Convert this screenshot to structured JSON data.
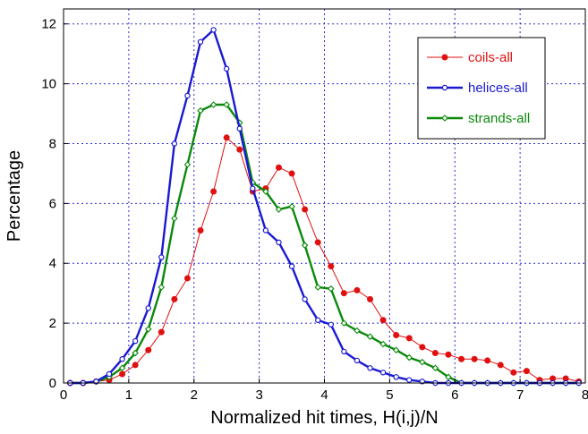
{
  "chart_data": {
    "type": "line",
    "title": "",
    "xlabel": "Normalized hit times, H(i,j)/N",
    "ylabel": "Percentage",
    "xlim": [
      0,
      8
    ],
    "ylim": [
      0,
      12.5
    ],
    "xticks": [
      "0",
      "1",
      "2",
      "3",
      "4",
      "5",
      "6",
      "7",
      "8"
    ],
    "yticks": [
      "0",
      "2",
      "4",
      "6",
      "8",
      "10",
      "12"
    ],
    "grid": true,
    "legend_position": "top-right",
    "series": [
      {
        "name": "coils-all",
        "color": "#e01010",
        "marker": "filled-circle",
        "x": [
          0.1,
          0.3,
          0.5,
          0.7,
          0.9,
          1.1,
          1.3,
          1.5,
          1.7,
          1.9,
          2.1,
          2.3,
          2.5,
          2.7,
          2.9,
          3.1,
          3.3,
          3.5,
          3.7,
          3.9,
          4.1,
          4.3,
          4.5,
          4.7,
          4.9,
          5.1,
          5.3,
          5.5,
          5.7,
          5.9,
          6.1,
          6.3,
          6.5,
          6.7,
          6.9,
          7.1,
          7.3,
          7.5,
          7.7,
          7.9
        ],
        "y": [
          0,
          0,
          0.05,
          0.1,
          0.3,
          0.6,
          1.1,
          1.7,
          2.8,
          3.5,
          5.1,
          6.4,
          8.2,
          7.8,
          6.4,
          6.5,
          7.2,
          7.0,
          5.8,
          4.7,
          3.9,
          3.0,
          3.1,
          2.8,
          2.1,
          1.6,
          1.5,
          1.2,
          1.0,
          0.95,
          0.8,
          0.8,
          0.75,
          0.6,
          0.35,
          0.4,
          0.1,
          0.15,
          0.15,
          0.05
        ]
      },
      {
        "name": "helices-all",
        "color": "#1a1ad0",
        "marker": "open-circle",
        "x": [
          0.1,
          0.3,
          0.5,
          0.7,
          0.9,
          1.1,
          1.3,
          1.5,
          1.7,
          1.9,
          2.1,
          2.3,
          2.5,
          2.7,
          2.9,
          3.1,
          3.3,
          3.5,
          3.7,
          3.9,
          4.1,
          4.3,
          4.5,
          4.7,
          4.9,
          5.1,
          5.3,
          5.5,
          5.7,
          5.9,
          6.1,
          6.3,
          6.5,
          6.7,
          6.9,
          7.1,
          7.3,
          7.5,
          7.7,
          7.9
        ],
        "y": [
          0,
          0,
          0.05,
          0.3,
          0.8,
          1.4,
          2.5,
          4.2,
          8.0,
          9.6,
          11.4,
          11.8,
          10.5,
          8.5,
          6.5,
          5.1,
          4.7,
          3.9,
          2.8,
          2.1,
          1.95,
          1.05,
          0.75,
          0.5,
          0.35,
          0.2,
          0.1,
          0.05,
          0,
          0,
          0,
          0,
          0,
          0,
          0,
          0,
          0,
          0,
          0,
          0
        ]
      },
      {
        "name": "strands-all",
        "color": "#0a8a0a",
        "marker": "open-diamond",
        "x": [
          0.1,
          0.3,
          0.5,
          0.7,
          0.9,
          1.1,
          1.3,
          1.5,
          1.7,
          1.9,
          2.1,
          2.3,
          2.5,
          2.7,
          2.9,
          3.1,
          3.3,
          3.5,
          3.7,
          3.9,
          4.1,
          4.3,
          4.5,
          4.7,
          4.9,
          5.1,
          5.3,
          5.5,
          5.7,
          5.9,
          6.1,
          6.3,
          6.5,
          6.7,
          6.9,
          7.1,
          7.3,
          7.5,
          7.7,
          7.9
        ],
        "y": [
          0,
          0,
          0.05,
          0.2,
          0.5,
          1.0,
          1.8,
          3.2,
          5.5,
          7.3,
          9.1,
          9.3,
          9.3,
          8.7,
          6.7,
          6.4,
          5.8,
          5.9,
          4.6,
          3.2,
          3.15,
          2.0,
          1.75,
          1.55,
          1.3,
          1.1,
          0.85,
          0.7,
          0.5,
          0.2,
          0,
          0,
          0,
          0,
          0,
          0,
          0,
          0,
          0,
          0
        ]
      }
    ]
  }
}
